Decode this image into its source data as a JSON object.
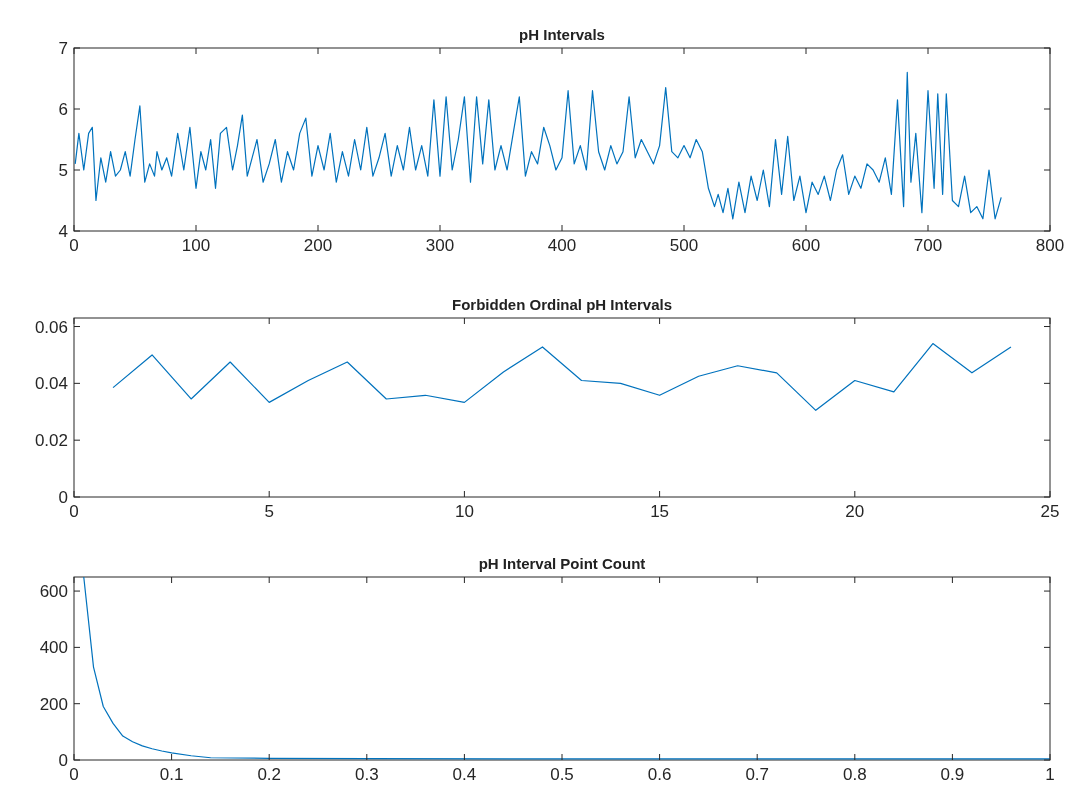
{
  "chart_data": [
    {
      "type": "line",
      "title": "pH Intervals",
      "xlim": [
        0,
        800
      ],
      "ylim": [
        4,
        7
      ],
      "xticks": [
        0,
        100,
        200,
        300,
        400,
        500,
        600,
        700,
        800
      ],
      "yticks": [
        4,
        5,
        6,
        7
      ],
      "series": [
        {
          "color": "#0072bd",
          "x": [
            1,
            4,
            8,
            12,
            15,
            18,
            22,
            26,
            30,
            34,
            38,
            42,
            46,
            50,
            54,
            58,
            62,
            66,
            68,
            72,
            76,
            80,
            85,
            90,
            95,
            100,
            104,
            108,
            112,
            116,
            120,
            125,
            130,
            134,
            138,
            142,
            146,
            150,
            155,
            160,
            165,
            170,
            175,
            180,
            185,
            190,
            195,
            200,
            205,
            210,
            215,
            220,
            225,
            230,
            235,
            240,
            245,
            250,
            255,
            260,
            265,
            270,
            275,
            280,
            285,
            290,
            295,
            300,
            305,
            310,
            315,
            320,
            325,
            330,
            335,
            340,
            345,
            350,
            355,
            360,
            365,
            370,
            375,
            380,
            385,
            390,
            395,
            400,
            405,
            410,
            415,
            420,
            425,
            430,
            435,
            440,
            445,
            450,
            455,
            460,
            465,
            470,
            475,
            480,
            485,
            490,
            495,
            500,
            505,
            510,
            515,
            520,
            525,
            528,
            532,
            536,
            540,
            545,
            550,
            555,
            560,
            565,
            570,
            575,
            580,
            585,
            590,
            595,
            600,
            605,
            610,
            615,
            620,
            625,
            630,
            635,
            640,
            645,
            650,
            655,
            660,
            665,
            670,
            675,
            680,
            683,
            686,
            690,
            695,
            700,
            705,
            708,
            712,
            715,
            720,
            725,
            730,
            735,
            740,
            745,
            750,
            755,
            760
          ],
          "values": [
            5.1,
            5.6,
            5.0,
            5.6,
            5.7,
            4.5,
            5.2,
            4.8,
            5.3,
            4.9,
            5.0,
            5.3,
            4.9,
            5.5,
            6.05,
            4.8,
            5.1,
            4.9,
            5.3,
            5.0,
            5.2,
            4.9,
            5.6,
            5.0,
            5.7,
            4.7,
            5.3,
            5.0,
            5.5,
            4.7,
            5.6,
            5.7,
            5.0,
            5.4,
            5.9,
            4.9,
            5.2,
            5.5,
            4.8,
            5.1,
            5.5,
            4.8,
            5.3,
            5.0,
            5.6,
            5.85,
            4.9,
            5.4,
            5.0,
            5.6,
            4.8,
            5.3,
            4.9,
            5.5,
            5.0,
            5.7,
            4.9,
            5.2,
            5.6,
            4.9,
            5.4,
            5.0,
            5.7,
            5.0,
            5.4,
            4.9,
            6.15,
            4.9,
            6.2,
            5.0,
            5.5,
            6.2,
            4.8,
            6.2,
            5.1,
            6.15,
            5.0,
            5.4,
            5.0,
            5.6,
            6.2,
            4.9,
            5.3,
            5.1,
            5.7,
            5.4,
            5.0,
            5.2,
            6.3,
            5.1,
            5.4,
            5.0,
            6.3,
            5.3,
            5.0,
            5.4,
            5.1,
            5.3,
            6.2,
            5.2,
            5.5,
            5.3,
            5.1,
            5.4,
            6.35,
            5.3,
            5.2,
            5.4,
            5.2,
            5.5,
            5.3,
            4.7,
            4.4,
            4.6,
            4.3,
            4.7,
            4.2,
            4.8,
            4.3,
            4.9,
            4.5,
            5.0,
            4.4,
            5.5,
            4.6,
            5.55,
            4.5,
            4.9,
            4.3,
            4.8,
            4.6,
            4.9,
            4.5,
            5.0,
            5.25,
            4.6,
            4.9,
            4.7,
            5.1,
            5.0,
            4.8,
            5.2,
            4.6,
            6.15,
            4.4,
            6.6,
            4.8,
            5.6,
            4.3,
            6.3,
            4.7,
            6.25,
            4.6,
            6.25,
            4.5,
            4.4,
            4.9,
            4.3,
            4.4,
            4.2,
            5.0,
            4.2,
            4.55
          ]
        }
      ]
    },
    {
      "type": "line",
      "title": "Forbidden Ordinal pH Intervals",
      "xlim": [
        0,
        25
      ],
      "ylim": [
        0,
        0.063
      ],
      "xticks": [
        0,
        5,
        10,
        15,
        20,
        25
      ],
      "yticks": [
        0,
        0.02,
        0.04,
        0.06
      ],
      "series": [
        {
          "color": "#0072bd",
          "x": [
            1,
            2,
            3,
            4,
            5,
            6,
            7,
            8,
            9,
            10,
            11,
            12,
            13,
            14,
            15,
            16,
            17,
            18,
            19,
            20,
            21,
            22,
            23,
            24
          ],
          "values": [
            0.0385,
            0.05,
            0.0345,
            0.0475,
            0.0333,
            0.041,
            0.0475,
            0.0345,
            0.0358,
            0.0333,
            0.044,
            0.0528,
            0.041,
            0.04,
            0.0358,
            0.0425,
            0.0462,
            0.0437,
            0.0305,
            0.041,
            0.037,
            0.054,
            0.0437,
            0.0528
          ]
        }
      ]
    },
    {
      "type": "line",
      "title": "pH Interval Point Count",
      "xlim": [
        0,
        1
      ],
      "ylim": [
        0,
        650
      ],
      "xticks": [
        0,
        0.1,
        0.2,
        0.3,
        0.4,
        0.5,
        0.6,
        0.7,
        0.8,
        0.9,
        1
      ],
      "yticks": [
        0,
        200,
        400,
        600
      ],
      "series": [
        {
          "color": "#0072bd",
          "x": [
            0.01,
            0.02,
            0.03,
            0.04,
            0.05,
            0.06,
            0.07,
            0.08,
            0.09,
            0.1,
            0.12,
            0.14,
            0.2,
            0.3,
            0.5,
            0.7,
            1
          ],
          "values": [
            650,
            330,
            190,
            130,
            85,
            65,
            50,
            40,
            32,
            25,
            15,
            8,
            6,
            5,
            4,
            4,
            4
          ]
        }
      ]
    }
  ]
}
